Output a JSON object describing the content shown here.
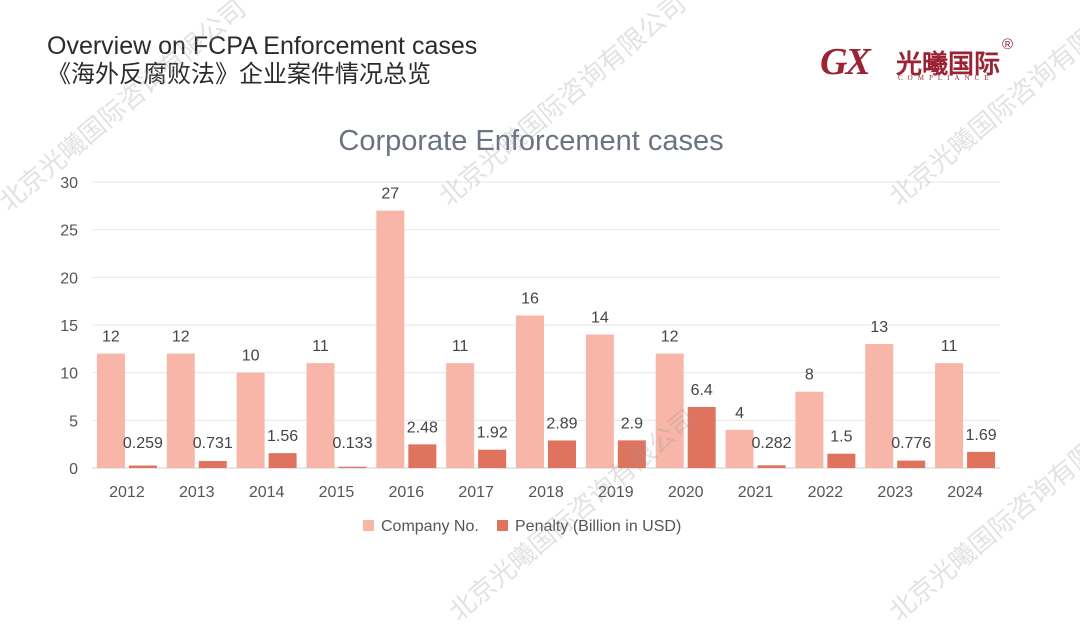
{
  "header": {
    "title_en": "Overview on FCPA Enforcement cases",
    "title_zh": "《海外反腐败法》企业案件情况总览"
  },
  "logo": {
    "mark": "GX",
    "name_zh": "光曦国际",
    "registered": "®",
    "tagline": "COMPLIANCE"
  },
  "watermark": {
    "text": "北京光曦国际咨询有限公司"
  },
  "colors": {
    "series_company": "#f7b6a8",
    "series_penalty": "#e0735e",
    "title": "#6b7383",
    "axis_text": "#555555",
    "grid": "#e6e6e6",
    "brand": "#9b2334"
  },
  "chart_data": {
    "type": "bar",
    "title": "Corporate Enforcement cases",
    "xlabel": "",
    "ylabel": "",
    "ylim": [
      0,
      30
    ],
    "yticks": [
      0,
      5,
      10,
      15,
      20,
      25,
      30
    ],
    "categories": [
      "2012",
      "2013",
      "2014",
      "2015",
      "2016",
      "2017",
      "2018",
      "2019",
      "2020",
      "2021",
      "2022",
      "2023",
      "2024"
    ],
    "series": [
      {
        "name": "Company No.",
        "values": [
          12,
          12,
          10,
          11,
          27,
          11,
          16,
          14,
          12,
          4,
          8,
          13,
          11
        ],
        "labels": [
          "12",
          "12",
          "10",
          "11",
          "27",
          "11",
          "16",
          "14",
          "12",
          "4",
          "8",
          "13",
          "11"
        ]
      },
      {
        "name": "Penalty (Billion in USD)",
        "values": [
          0.259,
          0.731,
          1.56,
          0.133,
          2.48,
          1.92,
          2.89,
          2.9,
          6.4,
          0.282,
          1.5,
          0.776,
          1.69
        ],
        "labels": [
          "0.259",
          "0.731",
          "1.56",
          "0.133",
          "2.48",
          "1.92",
          "2.89",
          "2.9",
          "6.4",
          "0.282",
          "1.5",
          "0.776",
          "1.69"
        ]
      }
    ],
    "legend_position": "bottom-center"
  }
}
